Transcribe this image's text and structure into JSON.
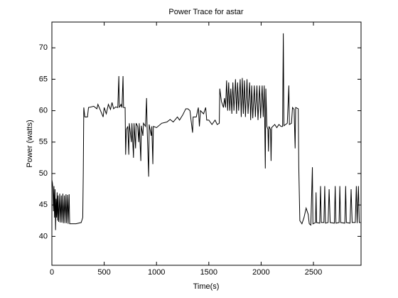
{
  "chart_data": {
    "type": "line",
    "title": "Power Trace for astar",
    "xlabel": "Time(s)",
    "ylabel": "Power (watts)",
    "xlim": [
      0,
      2955
    ],
    "xticks": [
      0,
      500,
      1000,
      1500,
      2000,
      2500
    ],
    "ylim": [
      35.4,
      74.1
    ],
    "yticks": [
      40,
      45,
      50,
      55,
      60,
      65,
      70
    ],
    "x": [
      0,
      5,
      10,
      15,
      20,
      25,
      30,
      35,
      40,
      45,
      50,
      55,
      60,
      65,
      75,
      80,
      90,
      95,
      105,
      110,
      120,
      125,
      135,
      140,
      150,
      155,
      165,
      170,
      230,
      280,
      295,
      300,
      305,
      315,
      340,
      350,
      400,
      430,
      440,
      470,
      490,
      500,
      520,
      540,
      560,
      575,
      590,
      610,
      630,
      640,
      645,
      660,
      670,
      680,
      685,
      700,
      705,
      712,
      725,
      735,
      740,
      760,
      765,
      780,
      785,
      800,
      805,
      820,
      830,
      835,
      850,
      855,
      870,
      875,
      895,
      905,
      910,
      925,
      930,
      950,
      955,
      965,
      970,
      1000,
      1050,
      1100,
      1130,
      1160,
      1200,
      1220,
      1250,
      1280,
      1300,
      1320,
      1330,
      1345,
      1350,
      1380,
      1400,
      1410,
      1420,
      1450,
      1470,
      1480,
      1500,
      1530,
      1560,
      1580,
      1600,
      1605,
      1620,
      1640,
      1650,
      1660,
      1670,
      1680,
      1690,
      1700,
      1710,
      1720,
      1730,
      1740,
      1755,
      1765,
      1775,
      1785,
      1800,
      1810,
      1820,
      1830,
      1840,
      1850,
      1865,
      1875,
      1890,
      1900,
      1910,
      1920,
      1935,
      1945,
      1960,
      1970,
      1985,
      1995,
      2010,
      2020,
      2030,
      2040,
      2045,
      2055,
      2065,
      2070,
      2075,
      2090,
      2095,
      2100,
      2130,
      2150,
      2170,
      2190,
      2205,
      2212,
      2218,
      2250,
      2265,
      2270,
      2290,
      2300,
      2315,
      2325,
      2330,
      2355,
      2360,
      2370,
      2390,
      2410,
      2430,
      2450,
      2460,
      2475,
      2490,
      2495,
      2520,
      2525,
      2530,
      2560,
      2568,
      2575,
      2600,
      2608,
      2615,
      2640,
      2650,
      2660,
      2700,
      2708,
      2715,
      2745,
      2752,
      2760,
      2800,
      2808,
      2815,
      2850,
      2860,
      2870,
      2900,
      2910,
      2918,
      2930,
      2938,
      2950
    ],
    "series": [
      {
        "color": "#000000",
        "values": [
          49,
          48.5,
          47.5,
          44,
          48,
          43,
          47.5,
          41,
          46,
          43,
          47,
          42.5,
          46.5,
          42.3,
          46.8,
          42.2,
          46.5,
          42.2,
          46.8,
          42.1,
          46.5,
          42.1,
          46.7,
          42.1,
          46.6,
          42,
          46.7,
          42,
          42,
          42.2,
          43,
          50,
          60.5,
          59,
          59,
          60.5,
          60.7,
          60.3,
          61,
          59.8,
          59,
          60.5,
          59.5,
          61,
          60.2,
          61.3,
          60.3,
          60.6,
          60.5,
          65.5,
          60.5,
          61,
          60.5,
          65.5,
          60.5,
          60.5,
          53,
          57,
          57.5,
          53,
          58,
          55,
          58,
          52.5,
          58,
          54,
          58,
          57.5,
          55,
          58,
          52,
          57.6,
          56,
          58,
          57.5,
          62,
          57.5,
          49.5,
          57.8,
          56,
          57.5,
          51.5,
          57.5,
          57.3,
          58,
          58.2,
          58.6,
          58.2,
          59,
          58.5,
          59.3,
          60.3,
          60.3,
          60,
          58.5,
          56.5,
          59,
          59,
          60.5,
          57.5,
          60,
          59.5,
          60.5,
          58.5,
          58.5,
          57.8,
          58.5,
          57.8,
          58,
          63.5,
          61.5,
          60.5,
          62,
          60.5,
          64.8,
          60,
          64.5,
          60,
          63.5,
          59.5,
          64.5,
          60,
          65,
          59.5,
          64.5,
          60,
          65,
          59,
          65.2,
          59.5,
          64.8,
          59,
          65,
          59.5,
          64.5,
          58.5,
          64,
          58.8,
          64,
          59,
          64,
          58.5,
          64,
          58.8,
          64,
          59,
          64,
          50.8,
          63.5,
          57.5,
          57,
          53.5,
          57.5,
          57,
          52,
          57.3,
          57.8,
          57.3,
          57.8,
          57.5,
          57.5,
          72.3,
          57.6,
          58,
          64,
          57.8,
          58,
          60.5,
          60.2,
          54,
          60.5,
          60.3,
          51,
          42.5,
          42,
          43,
          44.5,
          43.5,
          42,
          41.8,
          51,
          42,
          42.2,
          47,
          42.2,
          42.1,
          48,
          42.2,
          42.2,
          48,
          42.1,
          42.2,
          47.5,
          42.2,
          42.1,
          48,
          42.1,
          42.2,
          48,
          42.2,
          42.1,
          48,
          42.2,
          42.1,
          47.5,
          42.2,
          42.2,
          48,
          42.1,
          48,
          42.2,
          42.2
        ]
      }
    ]
  }
}
